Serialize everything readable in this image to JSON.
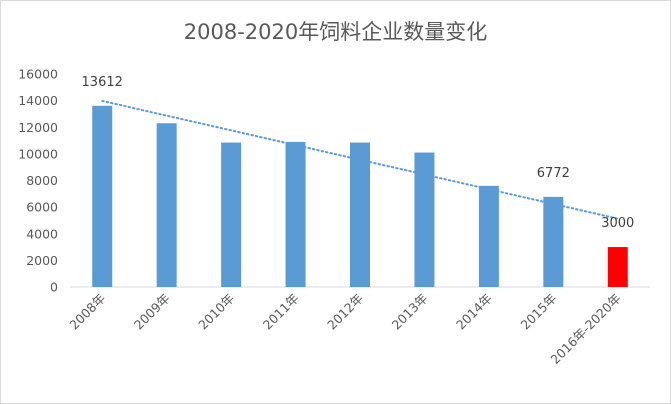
{
  "chart_data": {
    "type": "bar",
    "title": "2008-2020年饲料企业数量变化",
    "categories": [
      "2008年",
      "2009年",
      "2010年",
      "2011年",
      "2012年",
      "2013年",
      "2014年",
      "2015年",
      "2016年-2020年"
    ],
    "values": [
      13612,
      12300,
      10850,
      10900,
      10850,
      10100,
      7600,
      6772,
      3000
    ],
    "data_labels": [
      "13612",
      "",
      "",
      "",
      "",
      "",
      "",
      "6772",
      "3000"
    ],
    "ylim": [
      0,
      16000
    ],
    "yticks": [
      0,
      2000,
      4000,
      6000,
      8000,
      10000,
      12000,
      14000,
      16000
    ],
    "xlabel": "",
    "ylabel": "",
    "grid": false,
    "legend": "none",
    "trendline": {
      "style": "dotted",
      "type": "linear"
    },
    "colors": {
      "bar": "#5b9bd5",
      "highlight_bar": "#ff0000",
      "trendline": "#5b9bd5",
      "axis": "#d9d9d9"
    },
    "highlight_index": 8
  }
}
